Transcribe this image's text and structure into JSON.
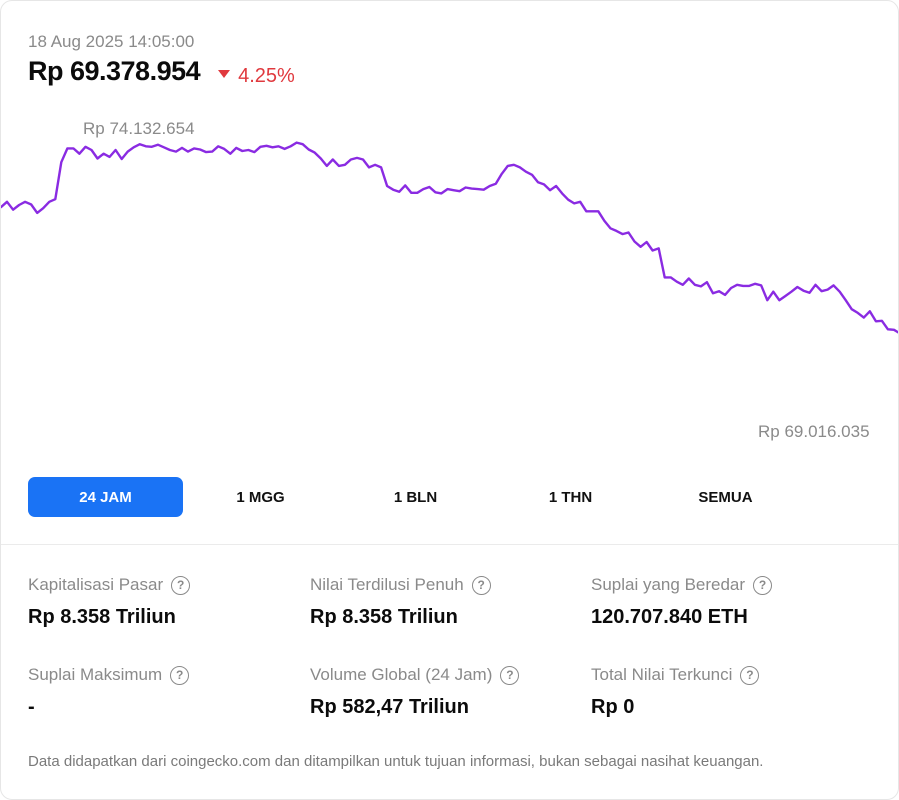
{
  "header": {
    "timestamp": "18 Aug 2025 14:05:00",
    "price": "Rp 69.378.954",
    "change": "4.25%",
    "change_direction": "down",
    "change_color": "#e0393e"
  },
  "chart_data": {
    "type": "line",
    "series": [
      {
        "values": [
          72.95,
          73.05,
          72.9,
          72.99,
          73.05,
          73.0,
          72.84,
          72.93,
          73.05,
          73.1,
          73.8,
          74.06,
          74.06,
          73.96,
          74.09,
          74.03,
          73.87,
          73.96,
          73.9,
          74.03,
          73.86,
          74.0,
          74.08,
          74.14,
          74.1,
          74.09,
          74.13,
          74.08,
          74.03,
          74.0,
          74.07,
          74.0,
          74.06,
          74.04,
          73.99,
          74.0,
          74.1,
          74.05,
          73.96,
          74.07,
          74.01,
          74.03,
          73.99,
          74.09,
          74.11,
          74.08,
          74.1,
          74.05,
          74.1,
          74.17,
          74.14,
          74.04,
          73.98,
          73.87,
          73.73,
          73.85,
          73.73,
          73.75,
          73.85,
          73.88,
          73.85,
          73.7,
          73.75,
          73.7,
          73.35,
          73.28,
          73.24,
          73.36,
          73.22,
          73.22,
          73.29,
          73.33,
          73.23,
          73.21,
          73.29,
          73.27,
          73.25,
          73.32,
          73.3,
          73.29,
          73.28,
          73.35,
          73.39,
          73.58,
          73.73,
          73.75,
          73.7,
          73.62,
          73.56,
          73.42,
          73.38,
          73.27,
          73.35,
          73.21,
          73.09,
          73.02,
          73.05,
          72.87,
          72.87,
          72.87,
          72.69,
          72.55,
          72.5,
          72.44,
          72.47,
          72.3,
          72.2,
          72.29,
          72.13,
          72.17,
          71.62,
          71.62,
          71.54,
          71.48,
          71.6,
          71.48,
          71.45,
          71.53,
          71.32,
          71.36,
          71.29,
          71.42,
          71.48,
          71.46,
          71.46,
          71.5,
          71.47,
          71.19,
          71.35,
          71.19,
          71.27,
          71.35,
          71.44,
          71.37,
          71.33,
          71.48,
          71.36,
          71.39,
          71.47,
          71.35,
          71.19,
          71.02,
          70.95,
          70.86,
          70.98,
          70.79,
          70.8,
          70.64,
          70.63,
          70.56
        ],
        "color": "#8a2be2"
      }
    ],
    "ylim": [
      69.0,
      74.2
    ],
    "annotations": {
      "high": "Rp 74.132.654",
      "low": "Rp 69.016.035"
    },
    "grid": false,
    "legend": "none"
  },
  "ranges": [
    {
      "label": "24 JAM",
      "active": true
    },
    {
      "label": "1 MGG",
      "active": false
    },
    {
      "label": "1 BLN",
      "active": false
    },
    {
      "label": "1 THN",
      "active": false
    },
    {
      "label": "SEMUA",
      "active": false
    }
  ],
  "stats": [
    {
      "label": "Kapitalisasi Pasar",
      "value": "Rp 8.358 Triliun"
    },
    {
      "label": "Nilai Terdilusi Penuh",
      "value": "Rp 8.358 Triliun"
    },
    {
      "label": "Suplai yang Beredar",
      "value": "120.707.840 ETH"
    },
    {
      "label": "Suplai Maksimum",
      "value": "-"
    },
    {
      "label": "Volume Global (24 Jam)",
      "value": "Rp 582,47 Triliun"
    },
    {
      "label": "Total Nilai Terkunci",
      "value": "Rp 0"
    }
  ],
  "help_glyph": "?",
  "disclaimer": "Data didapatkan dari coingecko.com dan ditampilkan untuk tujuan informasi, bukan sebagai nasihat keuangan."
}
